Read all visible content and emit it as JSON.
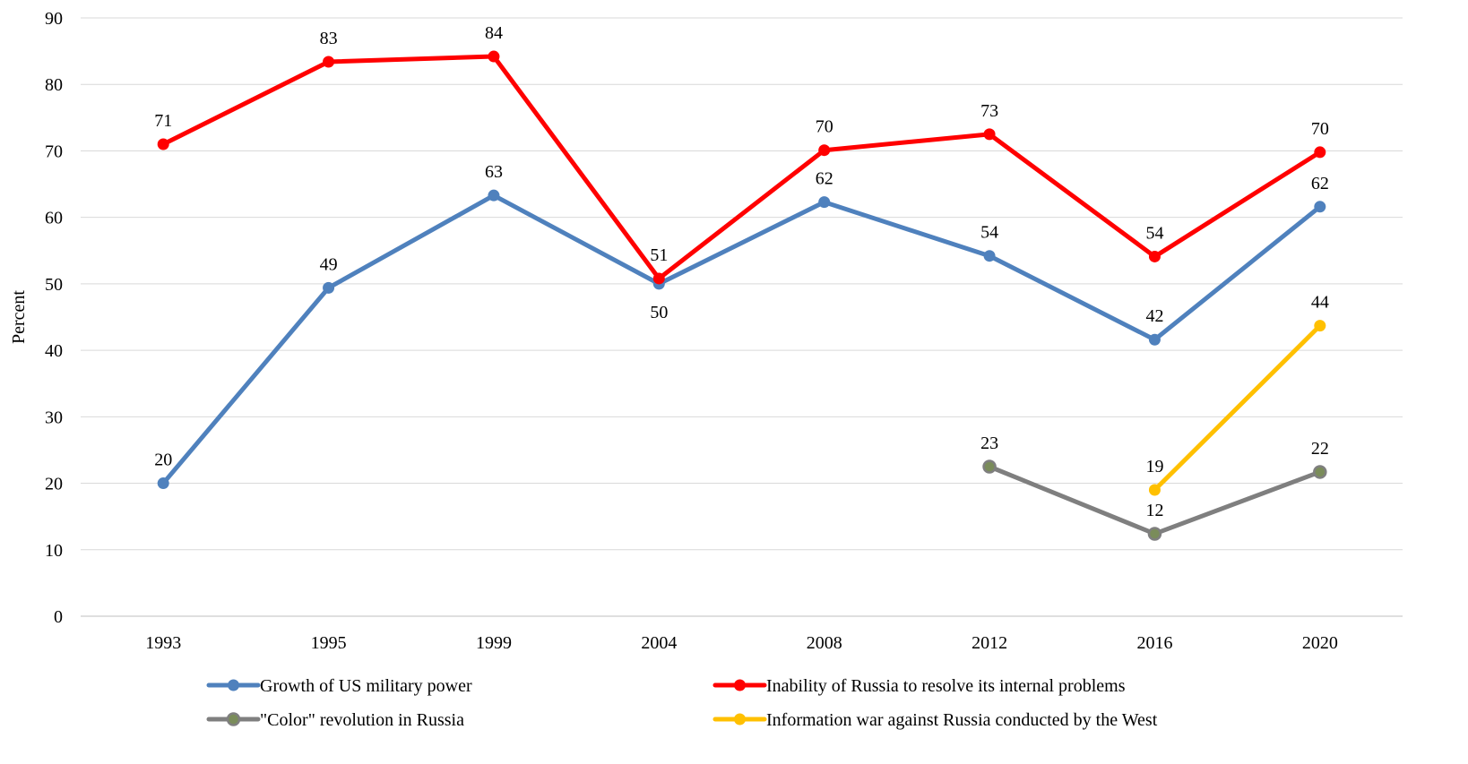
{
  "chart_data": {
    "type": "line",
    "title": "",
    "xlabel": "",
    "ylabel": "Percent",
    "ylim": [
      0,
      90
    ],
    "ytick_step": 10,
    "grid": true,
    "legend_position": "bottom",
    "categories": [
      "1993",
      "1995",
      "1999",
      "2004",
      "2008",
      "2012",
      "2016",
      "2020"
    ],
    "series": [
      {
        "name": "Growth of US military power",
        "color": "#4F81BD",
        "values": [
          20,
          49.4,
          63.3,
          50,
          62.3,
          54.2,
          41.6,
          61.6
        ],
        "labels": [
          "20",
          "49",
          "63",
          "50",
          "62",
          "54",
          "42",
          "62"
        ],
        "label_pos": [
          "above",
          "above",
          "above",
          "below",
          "above",
          "above",
          "above",
          "above"
        ]
      },
      {
        "name": "Inability of Russia to resolve its internal problems",
        "color": "#FF0000",
        "values": [
          71,
          83.4,
          84.2,
          50.8,
          70.1,
          72.5,
          54.1,
          69.8
        ],
        "labels": [
          "71",
          "83",
          "84",
          "51",
          "70",
          "73",
          "54",
          "70"
        ],
        "label_pos": [
          "above",
          "above",
          "above",
          "above",
          "above",
          "above",
          "above",
          "above"
        ]
      },
      {
        "name": "\"Color\" revolution in Russia",
        "color": "#7F7F7F",
        "marker_color": "#7A8C5A",
        "values": [
          null,
          null,
          null,
          null,
          null,
          22.5,
          12.4,
          21.7
        ],
        "labels": [
          null,
          null,
          null,
          null,
          null,
          "23",
          "12",
          "22"
        ],
        "label_pos": [
          null,
          null,
          null,
          null,
          null,
          "above",
          "above",
          "above"
        ]
      },
      {
        "name": "Information war against Russia conducted by the West",
        "color": "#FFC000",
        "values": [
          null,
          null,
          null,
          null,
          null,
          null,
          19,
          43.7
        ],
        "labels": [
          null,
          null,
          null,
          null,
          null,
          null,
          "19",
          "44"
        ],
        "label_pos": [
          null,
          null,
          null,
          null,
          null,
          null,
          "above",
          "above"
        ]
      }
    ]
  }
}
